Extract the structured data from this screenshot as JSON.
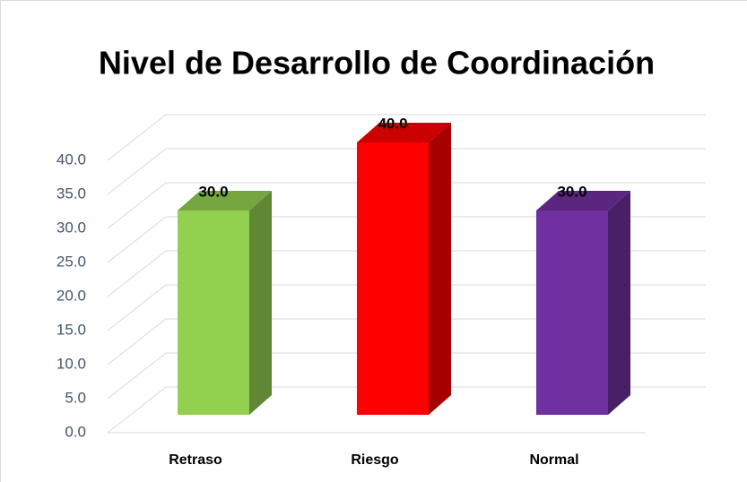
{
  "chart_data": {
    "type": "bar3d",
    "title": "Nivel de Desarrollo de Coordinación",
    "categories": [
      "Retraso",
      "Riesgo",
      "Normal"
    ],
    "values": [
      30,
      40,
      30
    ],
    "value_labels": [
      "30.0",
      "40.0",
      "30.0"
    ],
    "colors": [
      "#92d050",
      "#ff0000",
      "#7030a0"
    ],
    "ylim": [
      0,
      40
    ],
    "yticks": [
      {
        "value": 0,
        "label": "0.0"
      },
      {
        "value": 5,
        "label": "5.0"
      },
      {
        "value": 10,
        "label": "10.0"
      },
      {
        "value": 15,
        "label": "15.0"
      },
      {
        "value": 20,
        "label": "20.0"
      },
      {
        "value": 25,
        "label": "25.0"
      },
      {
        "value": 30,
        "label": "30.0"
      },
      {
        "value": 35,
        "label": "35.0"
      },
      {
        "value": 40,
        "label": "40.0"
      }
    ],
    "grid": true
  }
}
